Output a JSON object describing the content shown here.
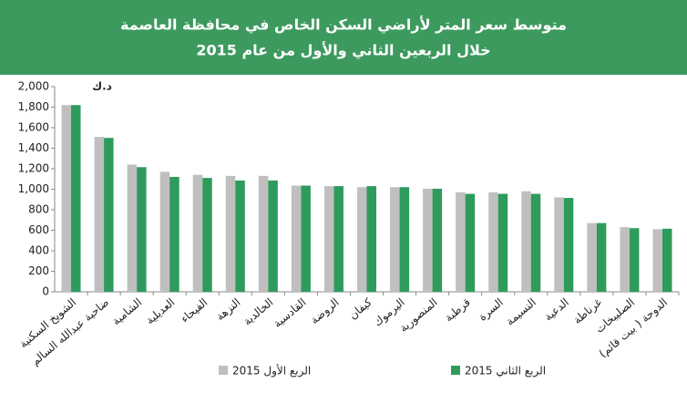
{
  "chart_data": {
    "type": "bar",
    "title": "متوسط سعر المتر  لأراضي السكن الخاص في محافظة العاصمة",
    "subtitle": "خلال الربعين الثاني والأول من عام  2015",
    "unit_label": "د.ك",
    "categories": [
      "الشويخ السكنية",
      "ضاحية عبدالله السالم",
      "الشامية",
      "العديلية",
      "الفيحاء",
      "النزهة",
      "الخالدية",
      "القادسية",
      "الروضة",
      "كيفان",
      "اليرموك",
      "المنصورية",
      "قرطبة",
      "السرة",
      "النسيمة",
      "الدعية",
      "غرناطة",
      "الصليبخات",
      "الدوحة ( بيت قائم)"
    ],
    "series": [
      {
        "name": "الربع الأول 2015",
        "color": "#bfbfbf",
        "values": [
          1820,
          1510,
          1240,
          1170,
          1140,
          1130,
          1130,
          1035,
          1030,
          1020,
          1020,
          1005,
          970,
          970,
          980,
          920,
          670,
          630,
          610
        ]
      },
      {
        "name": "الربع الثاني 2015",
        "color": "#2e9b5c",
        "values": [
          1820,
          1500,
          1215,
          1120,
          1110,
          1085,
          1085,
          1035,
          1030,
          1030,
          1020,
          1005,
          955,
          955,
          955,
          915,
          670,
          620,
          615
        ]
      }
    ],
    "ylim": [
      0,
      2000
    ],
    "yticks": [
      0,
      200,
      400,
      600,
      800,
      {
        "value": 1000,
        "label": "1,000"
      },
      {
        "value": 1200,
        "label": "1,200"
      },
      {
        "value": 1400,
        "label": "1,400"
      },
      {
        "value": 1600,
        "label": "1,600"
      },
      {
        "value": 1800,
        "label": "1,800"
      },
      {
        "value": 2000,
        "label": "2,000"
      }
    ],
    "grid": false
  }
}
